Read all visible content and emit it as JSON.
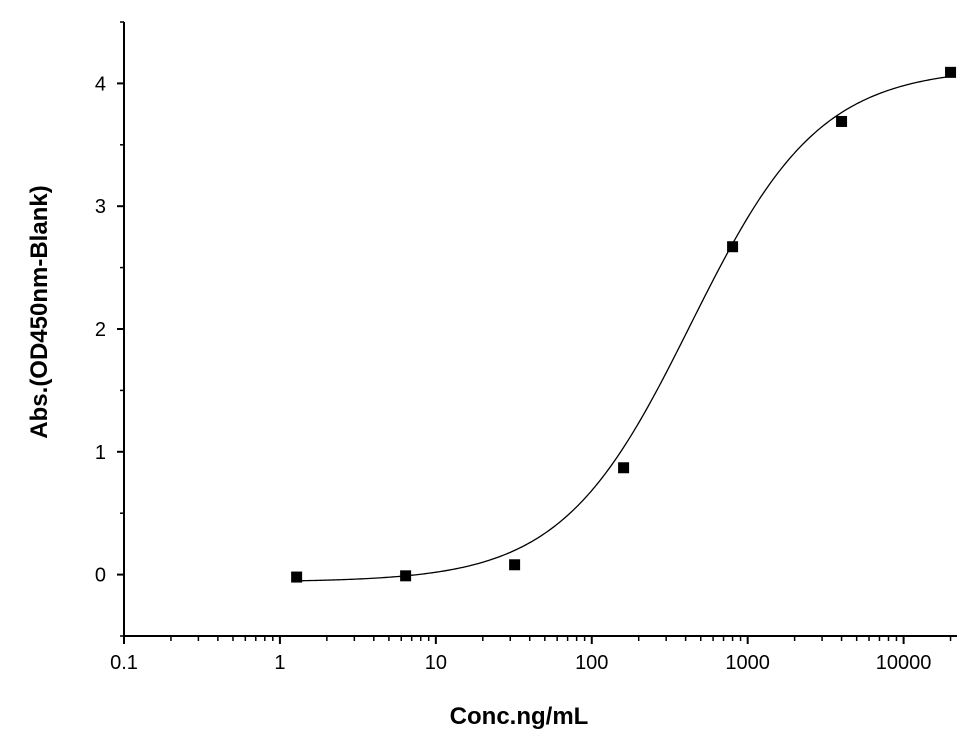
{
  "chart_data": {
    "type": "scatter",
    "xlabel": "Conc.ng/mL",
    "ylabel": "Abs.(OD450nm-Blank)",
    "x_scale": "log",
    "xlim": [
      0.1,
      22000
    ],
    "ylim": [
      -0.5,
      4.5
    ],
    "x_ticks": [
      0.1,
      1,
      10,
      100,
      1000,
      10000
    ],
    "x_tick_labels": [
      "0.1",
      "1",
      "10",
      "100",
      "1000",
      "10000"
    ],
    "y_ticks": [
      0,
      1,
      2,
      3,
      4
    ],
    "y_tick_labels": [
      "0",
      "1",
      "2",
      "3",
      "4"
    ],
    "grid": false,
    "series": [
      {
        "marker": "square",
        "color": "#000000",
        "x": [
          1.28,
          6.4,
          32,
          160,
          800,
          4000,
          20000
        ],
        "y": [
          -0.02,
          -0.01,
          0.08,
          0.87,
          2.67,
          3.69,
          4.09
        ]
      }
    ],
    "fit_curve": {
      "type": "4PL",
      "color": "#000000",
      "bottom": -0.06,
      "top": 4.13,
      "ec50": 430,
      "hill": 1.05,
      "x_range": [
        1.28,
        20000
      ]
    }
  }
}
